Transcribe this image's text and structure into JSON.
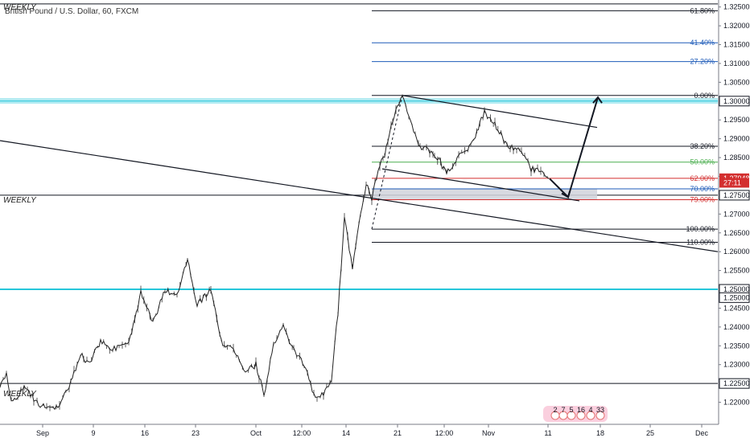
{
  "chart_data": {
    "type": "candlestick",
    "title": "British Pound / U.S. Dollar, 60, FXCM",
    "weekly_labels": [
      "WEEKLY",
      "WEEKLY",
      "WEEKLY"
    ],
    "price_axis": {
      "min": 1.215,
      "max": 1.326,
      "ticks": [
        "1.32500",
        "1.32000",
        "1.31500",
        "1.31000",
        "1.30500",
        "1.30000",
        "1.29500",
        "1.29000",
        "1.28500",
        "1.28000",
        "1.27500",
        "1.27000",
        "1.26500",
        "1.26000",
        "1.25500",
        "1.25000",
        "1.24500",
        "1.24000",
        "1.23500",
        "1.23000",
        "1.22500",
        "1.22000"
      ],
      "highlighted": [
        {
          "label": "1.30000",
          "color": "#131722"
        },
        {
          "label": "1.27948",
          "color": "#ffffff"
        },
        {
          "label": "27:11",
          "color": "#ffffff"
        },
        {
          "label": "1.27500",
          "color": "#131722"
        },
        {
          "label": "1.25000",
          "color": "#131722"
        },
        {
          "label": "1.25000",
          "color": "#131722"
        },
        {
          "label": "1.22500",
          "color": "#131722"
        }
      ]
    },
    "time_axis": [
      "Sep",
      "9",
      "16",
      "23",
      "Oct",
      "12:00",
      "14",
      "21",
      "12:00",
      "Nov",
      "11",
      "18",
      "25",
      "Dec"
    ],
    "fibonacci": [
      {
        "level": "61.80%",
        "price": 1.324,
        "color": "#131722"
      },
      {
        "level": "41.40%",
        "price": 1.3155,
        "color": "#1e5bb8"
      },
      {
        "level": "27.20%",
        "price": 1.3105,
        "color": "#1e5bb8"
      },
      {
        "level": "0.00%",
        "price": 1.3015,
        "color": "#131722"
      },
      {
        "level": "38.20%",
        "price": 1.288,
        "color": "#131722"
      },
      {
        "level": "50.00%",
        "price": 1.2838,
        "color": "#4caf50"
      },
      {
        "level": "62.00%",
        "price": 1.2795,
        "color": "#d32f2f"
      },
      {
        "level": "70.00%",
        "price": 1.2767,
        "color": "#1e5bb8"
      },
      {
        "level": "79.00%",
        "price": 1.2738,
        "color": "#d32f2f"
      },
      {
        "level": "100.00%",
        "price": 1.266,
        "color": "#131722"
      },
      {
        "level": "110.00%",
        "price": 1.2625,
        "color": "#131722"
      }
    ],
    "price_series": [
      {
        "t": 0,
        "p": 1.224
      },
      {
        "t": 8,
        "p": 1.228
      },
      {
        "t": 14,
        "p": 1.22
      },
      {
        "t": 30,
        "p": 1.224
      },
      {
        "t": 50,
        "p": 1.219
      },
      {
        "t": 70,
        "p": 1.2185
      },
      {
        "t": 88,
        "p": 1.225
      },
      {
        "t": 100,
        "p": 1.233
      },
      {
        "t": 110,
        "p": 1.23
      },
      {
        "t": 125,
        "p": 1.236
      },
      {
        "t": 140,
        "p": 1.234
      },
      {
        "t": 160,
        "p": 1.236
      },
      {
        "t": 175,
        "p": 1.249
      },
      {
        "t": 190,
        "p": 1.241
      },
      {
        "t": 205,
        "p": 1.25
      },
      {
        "t": 220,
        "p": 1.248
      },
      {
        "t": 233,
        "p": 1.258
      },
      {
        "t": 245,
        "p": 1.246
      },
      {
        "t": 262,
        "p": 1.25
      },
      {
        "t": 275,
        "p": 1.236
      },
      {
        "t": 290,
        "p": 1.234
      },
      {
        "t": 305,
        "p": 1.228
      },
      {
        "t": 318,
        "p": 1.23
      },
      {
        "t": 328,
        "p": 1.222
      },
      {
        "t": 340,
        "p": 1.235
      },
      {
        "t": 352,
        "p": 1.24
      },
      {
        "t": 365,
        "p": 1.234
      },
      {
        "t": 378,
        "p": 1.23
      },
      {
        "t": 390,
        "p": 1.2215
      },
      {
        "t": 402,
        "p": 1.2225
      },
      {
        "t": 412,
        "p": 1.226
      },
      {
        "t": 420,
        "p": 1.244
      },
      {
        "t": 428,
        "p": 1.269
      },
      {
        "t": 438,
        "p": 1.255
      },
      {
        "t": 448,
        "p": 1.27
      },
      {
        "t": 455,
        "p": 1.278
      },
      {
        "t": 462,
        "p": 1.274
      },
      {
        "t": 468,
        "p": 1.28
      },
      {
        "t": 478,
        "p": 1.286
      },
      {
        "t": 488,
        "p": 1.295
      },
      {
        "t": 500,
        "p": 1.3012
      },
      {
        "t": 512,
        "p": 1.293
      },
      {
        "t": 522,
        "p": 1.288
      },
      {
        "t": 540,
        "p": 1.286
      },
      {
        "t": 555,
        "p": 1.281
      },
      {
        "t": 570,
        "p": 1.285
      },
      {
        "t": 585,
        "p": 1.288
      },
      {
        "t": 602,
        "p": 1.297
      },
      {
        "t": 615,
        "p": 1.294
      },
      {
        "t": 630,
        "p": 1.288
      },
      {
        "t": 648,
        "p": 1.287
      },
      {
        "t": 660,
        "p": 1.282
      },
      {
        "t": 672,
        "p": 1.281
      },
      {
        "t": 682,
        "p": 1.2794
      }
    ],
    "markers": [
      "2",
      "7",
      "5",
      "16",
      "4",
      "33"
    ]
  }
}
